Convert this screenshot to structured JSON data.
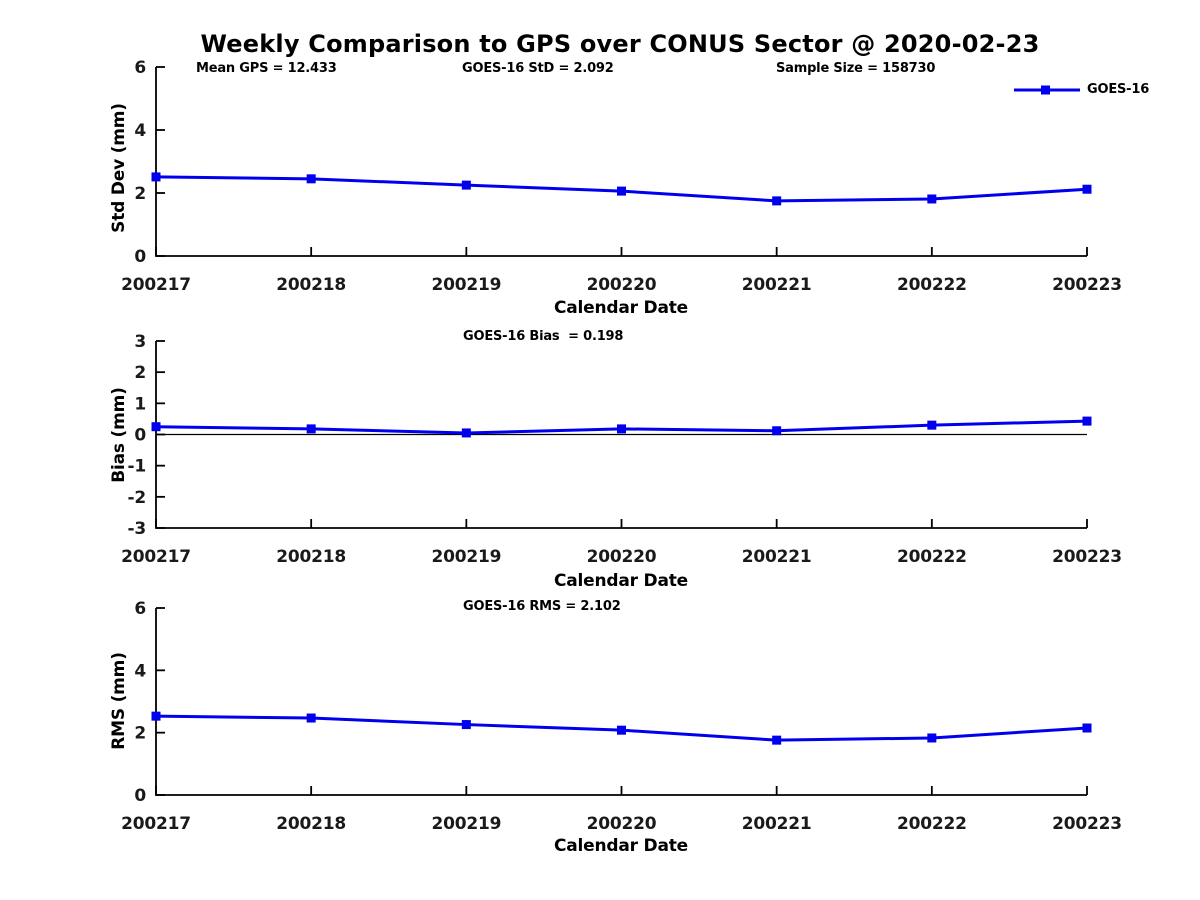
{
  "title": "Weekly Comparison to GPS over CONUS Sector @ 2020-02-23",
  "legend": {
    "label": "GOES-16",
    "color": "#0000EE"
  },
  "colors": {
    "line": "#0000EE",
    "axis": "#000000",
    "zero_line": "#000000"
  },
  "chart_data": [
    {
      "type": "line",
      "categories": [
        "200217",
        "200218",
        "200219",
        "200220",
        "200221",
        "200222",
        "200223"
      ],
      "series": [
        {
          "name": "GOES-16",
          "values": [
            2.51,
            2.45,
            2.25,
            2.06,
            1.75,
            1.81,
            2.12
          ]
        }
      ],
      "annotations": [
        "Mean GPS = 12.433",
        "GOES-16 StD = 2.092",
        "Sample Size = 158730"
      ],
      "xlabel": "Calendar Date",
      "ylabel": "Std Dev (mm)",
      "ylim": [
        0,
        6
      ],
      "yticks": [
        0,
        2,
        4,
        6
      ],
      "zero_line": false,
      "legend_position": "upper-right-outside",
      "grid": false
    },
    {
      "type": "line",
      "categories": [
        "200217",
        "200218",
        "200219",
        "200220",
        "200221",
        "200222",
        "200223"
      ],
      "series": [
        {
          "name": "GOES-16",
          "values": [
            0.25,
            0.18,
            0.05,
            0.18,
            0.12,
            0.3,
            0.43
          ]
        }
      ],
      "annotations": [
        "GOES-16 Bias  = 0.198"
      ],
      "xlabel": "Calendar Date",
      "ylabel": "Bias (mm)",
      "ylim": [
        -3,
        3
      ],
      "yticks": [
        3,
        2,
        1,
        0,
        -1,
        -2,
        -3
      ],
      "zero_line": true,
      "grid": false
    },
    {
      "type": "line",
      "categories": [
        "200217",
        "200218",
        "200219",
        "200220",
        "200221",
        "200222",
        "200223"
      ],
      "series": [
        {
          "name": "GOES-16",
          "values": [
            2.53,
            2.47,
            2.26,
            2.08,
            1.76,
            1.83,
            2.15
          ]
        }
      ],
      "annotations": [
        "GOES-16 RMS = 2.102"
      ],
      "xlabel": "Calendar Date",
      "ylabel": "RMS (mm)",
      "ylim": [
        0,
        6
      ],
      "yticks": [
        0,
        2,
        4,
        6
      ],
      "zero_line": false,
      "grid": false
    }
  ]
}
